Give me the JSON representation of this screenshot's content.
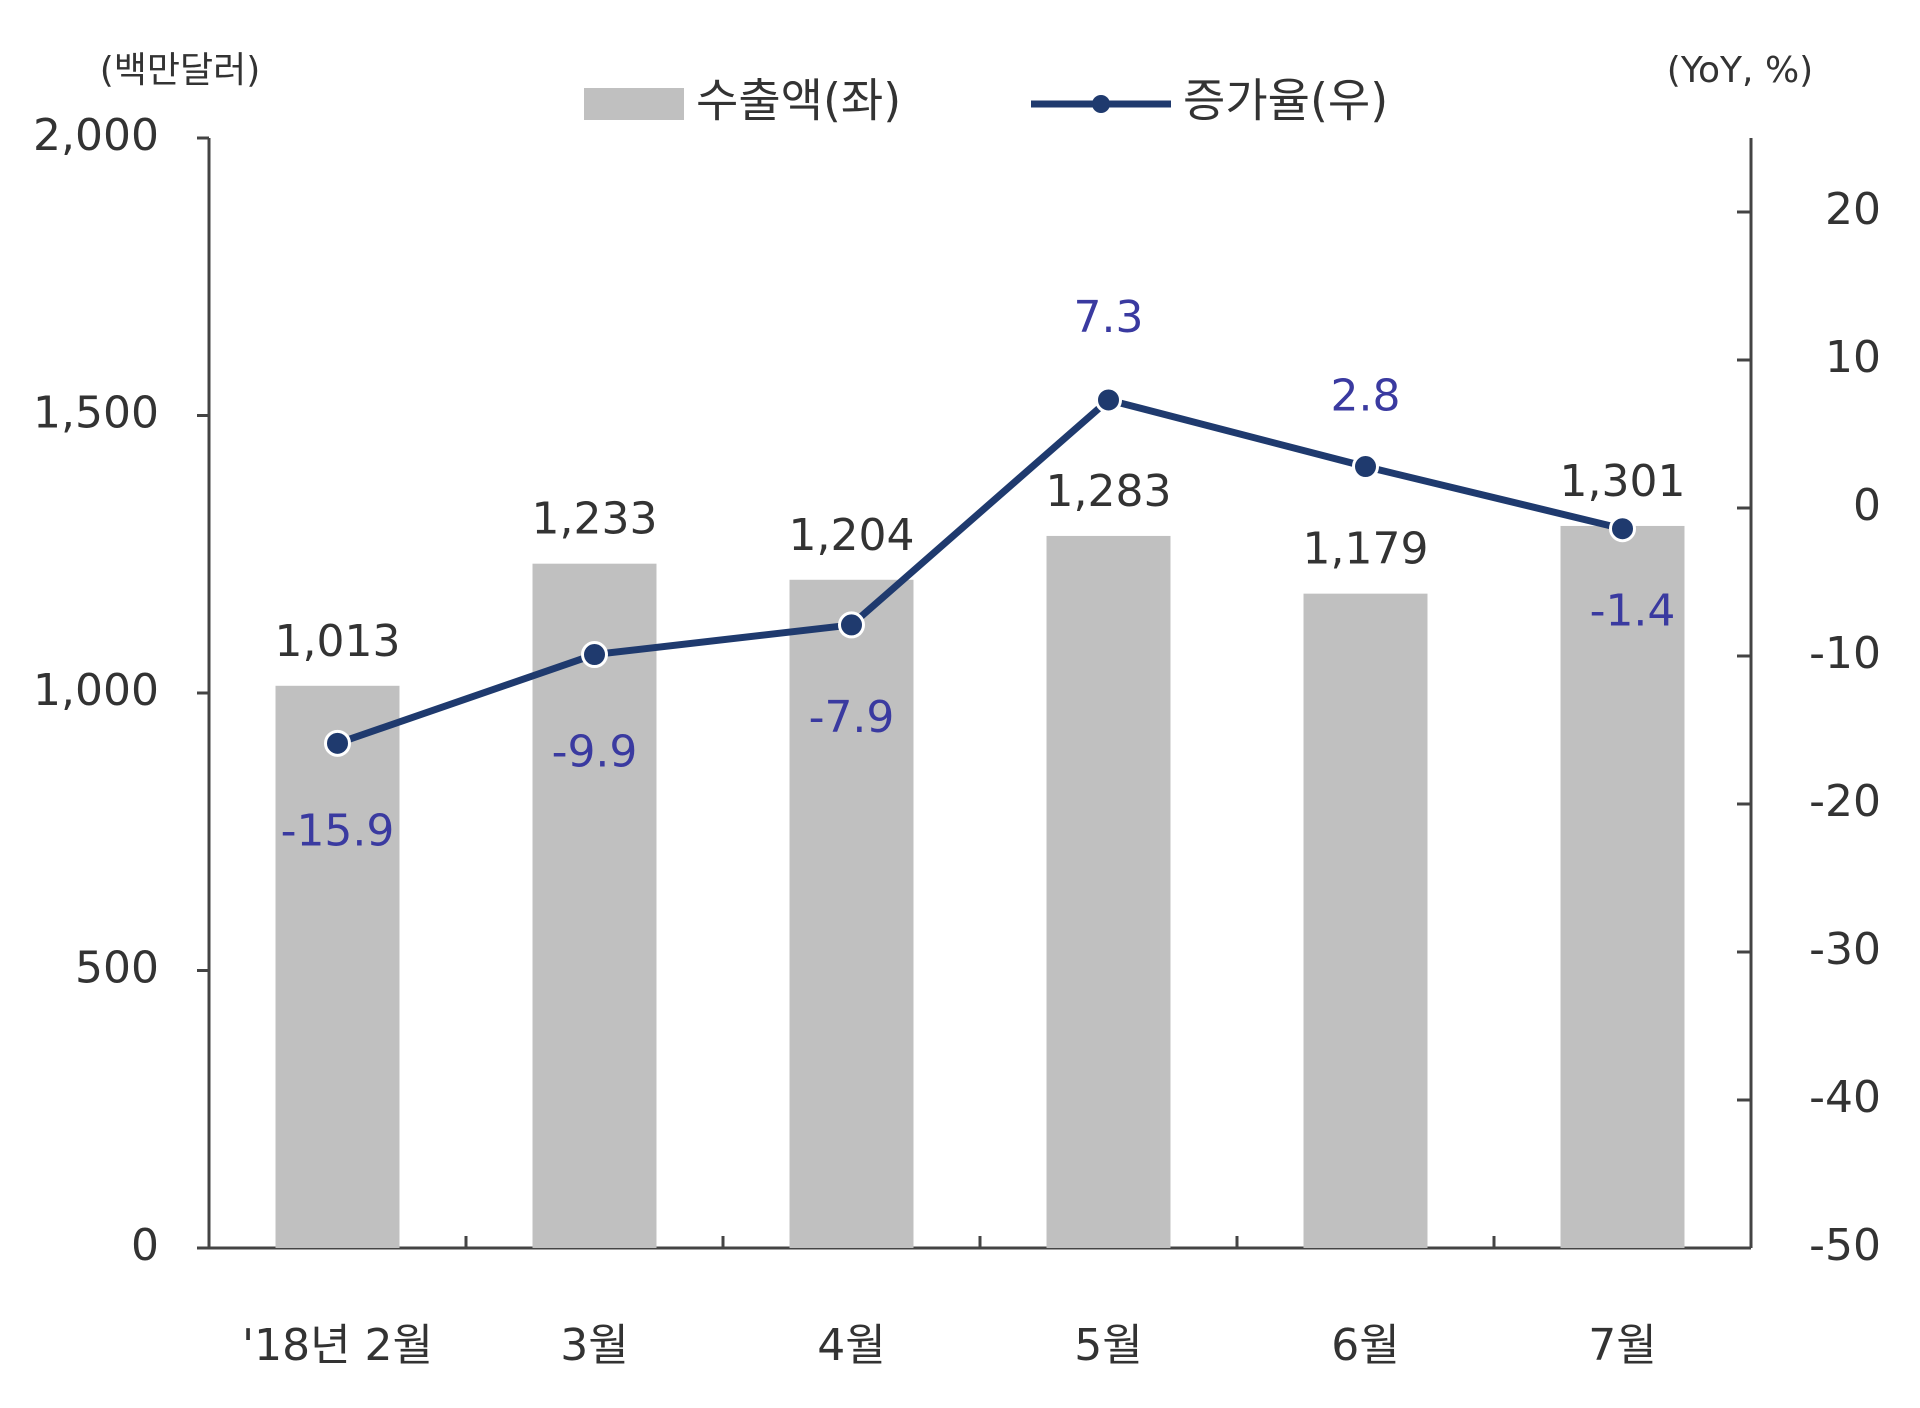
{
  "chart_data": {
    "type": "bar",
    "y_axis_label": "(백만달러)",
    "y2_axis_label": "(YoY, %)",
    "categories": [
      "'18년 2월",
      "3월",
      "4월",
      "5월",
      "6월",
      "7월"
    ],
    "series": [
      {
        "name": "수출액(좌)",
        "type": "bar",
        "color": "#c0c0c0",
        "values": [
          1013,
          1233,
          1204,
          1283,
          1179,
          1301
        ],
        "value_labels": [
          "1,013",
          "1,233",
          "1,204",
          "1,283",
          "1,179",
          "1,301"
        ]
      },
      {
        "name": "증가율(우)",
        "type": "line",
        "axis": "y2",
        "color": "#1f3a6e",
        "values": [
          -15.9,
          -9.9,
          -7.9,
          7.3,
          2.8,
          -1.4
        ]
      }
    ],
    "ylim": [
      0,
      2000
    ],
    "yticks": [
      0,
      500,
      {
        "value": 1000,
        "label": "1,000"
      },
      {
        "value": 1500,
        "label": "1,500"
      },
      {
        "value": 2000,
        "label": "2,000"
      }
    ],
    "y2lim": [
      -50,
      25
    ],
    "y2ticks": [
      -50,
      -40,
      -30,
      -20,
      -10,
      0,
      10,
      20
    ]
  }
}
